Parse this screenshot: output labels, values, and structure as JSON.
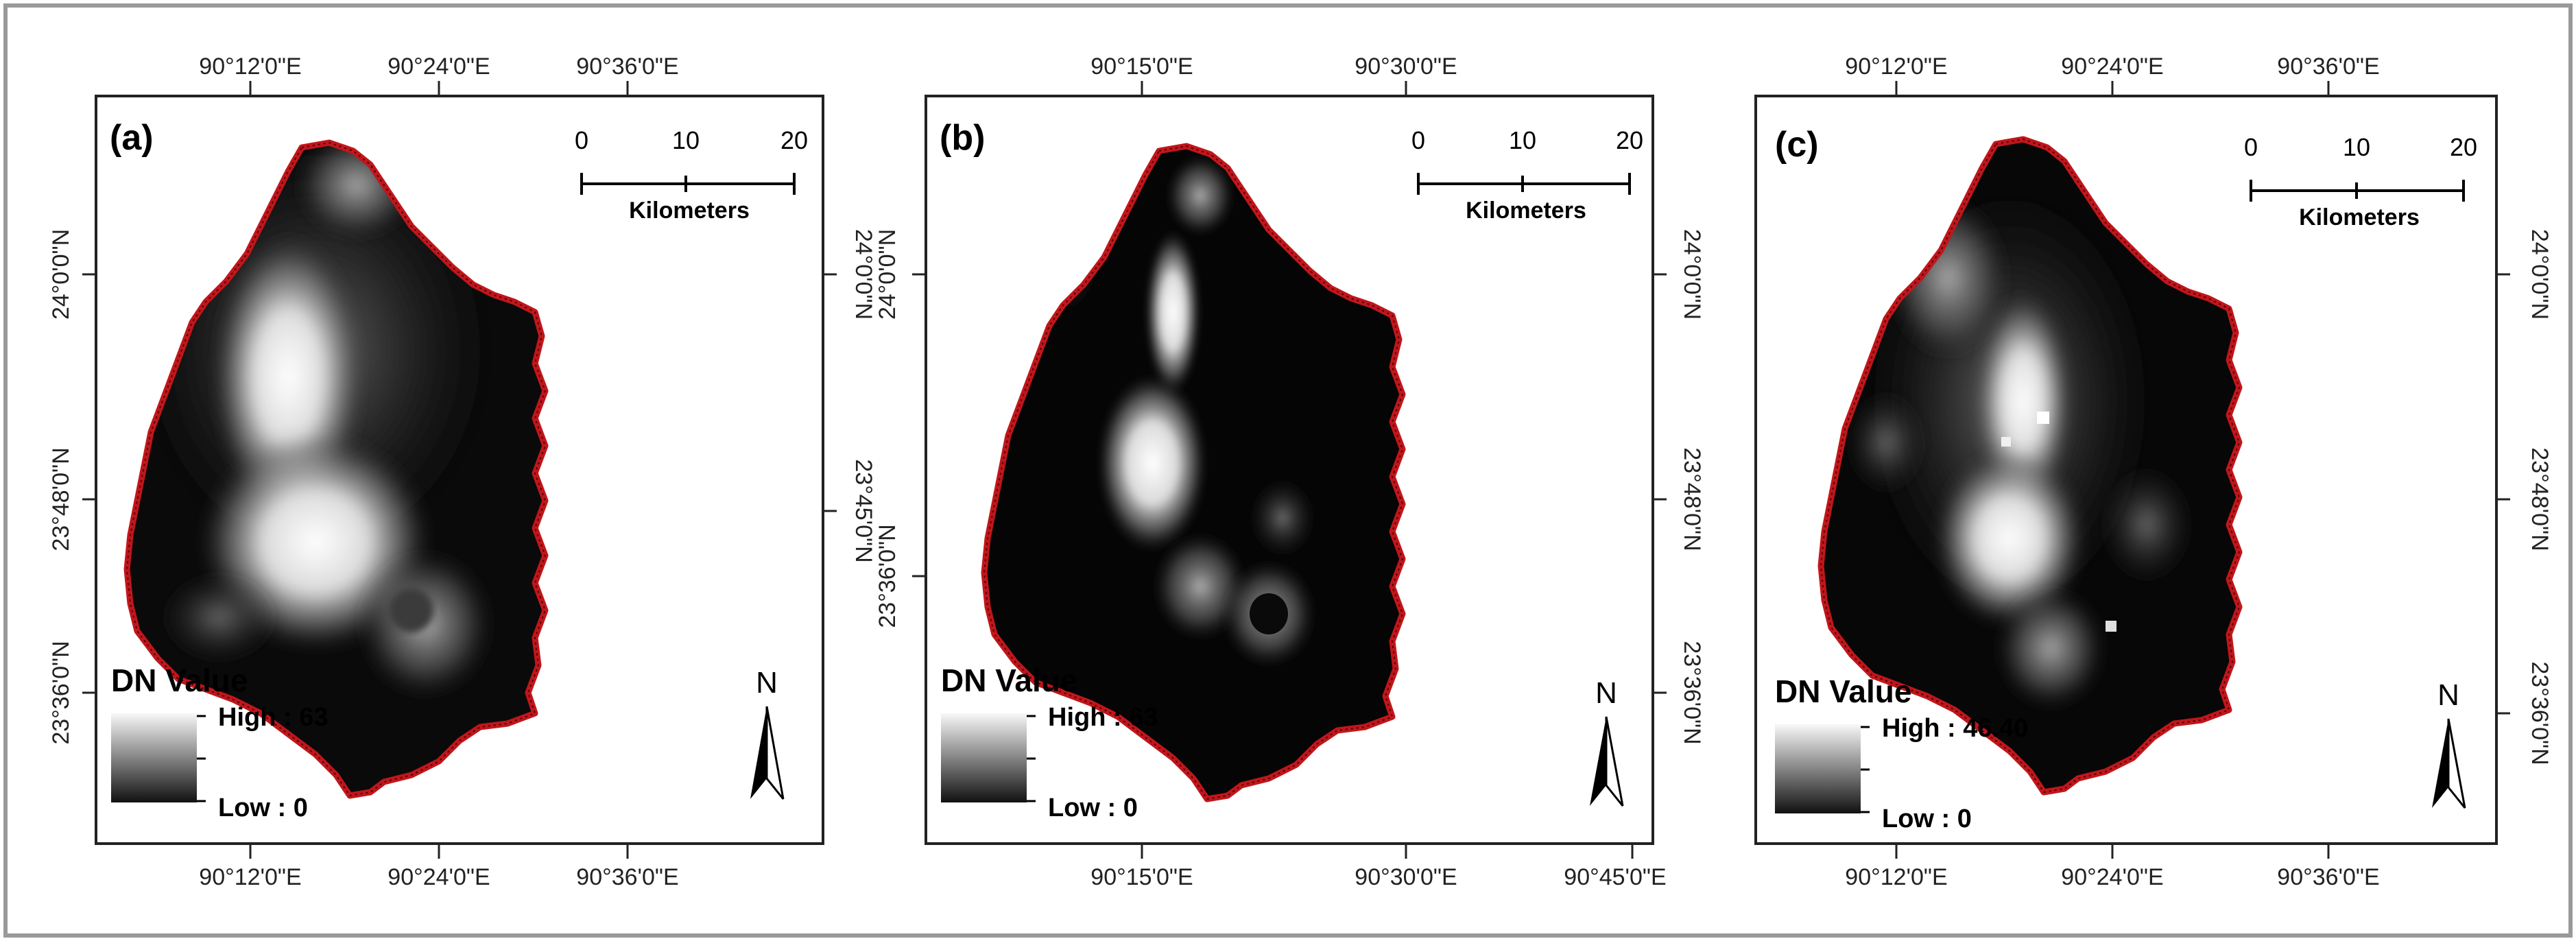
{
  "panels": [
    {
      "letter": "(a)",
      "top_ticks": [
        "90°12'0\"E",
        "90°24'0\"E",
        "90°36'0\"E"
      ],
      "bottom_ticks": [
        "90°12'0\"E",
        "90°24'0\"E",
        "90°36'0\"E"
      ],
      "left_ticks": [
        "24°0'0\"N",
        "23°48'0\"N",
        "23°36'0\"N"
      ],
      "right_ticks": [
        "24°0'0\"N",
        "23°45'0\"N"
      ],
      "scalebar": {
        "numbers": [
          "0",
          "10",
          "20"
        ],
        "unit": "Kilometers"
      },
      "legend": {
        "title": "DN Value",
        "high": "High : 63",
        "low": "Low : 0"
      },
      "north": "N"
    },
    {
      "letter": "(b)",
      "top_ticks": [
        "90°15'0\"E",
        "90°30'0\"E"
      ],
      "bottom_ticks": [
        "90°15'0\"E",
        "90°30'0\"E",
        "90°45'0\"E"
      ],
      "left_ticks": [
        "24°0'0\"N",
        "23°36'0\"N"
      ],
      "right_ticks": [
        "24°0'0\"N",
        "23°48'0\"N",
        "23°36'0\"N"
      ],
      "scalebar": {
        "numbers": [
          "0",
          "10",
          "20"
        ],
        "unit": "Kilometers"
      },
      "legend": {
        "title": "DN Value",
        "high": "High : 63",
        "low": "Low : 0"
      },
      "north": "N"
    },
    {
      "letter": "(c)",
      "top_ticks": [
        "90°12'0\"E",
        "90°24'0\"E",
        "90°36'0\"E"
      ],
      "bottom_ticks": [
        "90°12'0\"E",
        "90°24'0\"E",
        "90°36'0\"E"
      ],
      "left_ticks": [],
      "right_ticks": [
        "24°0'0\"N",
        "23°48'0\"N",
        "23°36'0\"N"
      ],
      "scalebar": {
        "numbers": [
          "0",
          "10",
          "20"
        ],
        "unit": "Kilometers"
      },
      "legend": {
        "title": "DN Value",
        "high": "High : 46.40",
        "low": "Low : 0"
      },
      "north": "N"
    }
  ],
  "colors": {
    "boundary": "#c0161c",
    "map_background": "#050505",
    "frame": "#222222",
    "outer_frame": "#999999"
  }
}
